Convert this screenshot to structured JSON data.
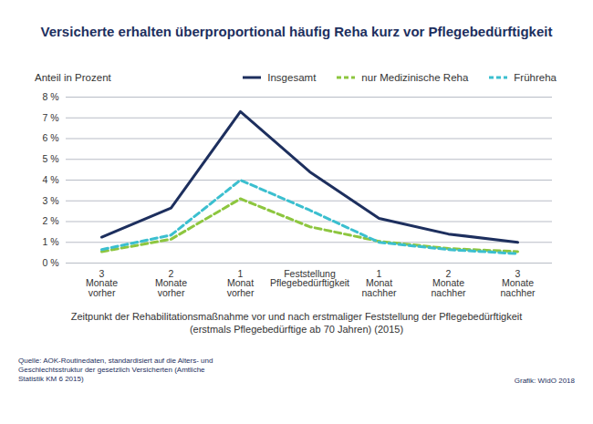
{
  "chart_data": {
    "type": "line",
    "title": "Versicherte erhalten überproportional häufig Reha kurz vor Pflegebedürftigkeit",
    "y_label": "Anteil in Prozent",
    "x_label": "Zeitpunkt der Rehabilitationsmaßnahme vor und nach erstmaliger Feststellung der Pflegebedürftigkeit\n(erstmals Pflegebedürftige ab 70 Jahren) (2015)",
    "source": "Quelle: AOK-Routinedaten, standardisiert auf die Alters- und Geschlechtsstruktur der gesetzlich Versicherten (Amtliche Statistik KM 6 2015)",
    "credit": "Grafik: WIdO 2018",
    "categories": [
      "3 Monate vorher",
      "2 Monate vorher",
      "1 Monat vorher",
      "Feststellung Pflegebedürftigkeit",
      "1 Monat nachher",
      "2 Monate nachher",
      "3 Monate nachher"
    ],
    "series": [
      {
        "name": "Insgesamt",
        "color": "#1d2f5e",
        "line_style": "solid",
        "values": [
          1.25,
          2.65,
          7.3,
          4.4,
          2.15,
          1.4,
          1.0
        ]
      },
      {
        "name": "nur Medizinische Reha",
        "color": "#8dc63f",
        "line_style": "dashed",
        "values": [
          0.55,
          1.15,
          3.1,
          1.75,
          1.05,
          0.7,
          0.55
        ]
      },
      {
        "name": "Frühreha",
        "color": "#3bbfcf",
        "line_style": "dashed",
        "values": [
          0.65,
          1.35,
          4.0,
          2.55,
          1.0,
          0.65,
          0.45
        ]
      }
    ],
    "ylim": [
      0,
      8
    ],
    "yticks": [
      {
        "value": 0,
        "label": "0 %"
      },
      {
        "value": 1,
        "label": "1 %"
      },
      {
        "value": 2,
        "label": "2 %"
      },
      {
        "value": 3,
        "label": "3 %"
      },
      {
        "value": 4,
        "label": "4 %"
      },
      {
        "value": 5,
        "label": "5 %"
      },
      {
        "value": 6,
        "label": "6 %"
      },
      {
        "value": 7,
        "label": "7 %"
      },
      {
        "value": 8,
        "label": "8 %"
      }
    ],
    "grid": true,
    "legend": "top-right"
  }
}
